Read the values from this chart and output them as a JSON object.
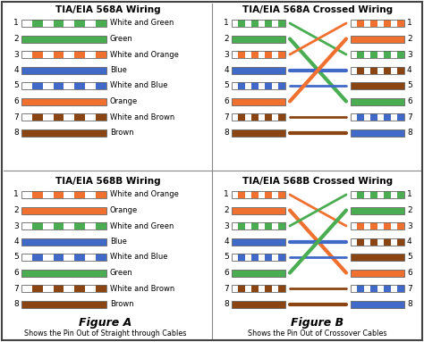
{
  "title_568A": "TIA/EIA 568A Wiring",
  "title_568B": "TIA/EIA 568B Wiring",
  "title_568A_cross": "TIA/EIA 568A Crossed Wiring",
  "title_568B_cross": "TIA/EIA 568B Crossed Wiring",
  "fig_A_label": "Figure A",
  "fig_B_label": "Figure B",
  "caption_A": "Shows the Pin Out of Straight through Cables",
  "caption_B": "Shows the Pin Out of Crossover Cables",
  "bg_color": "#ffffff",
  "wire_568A": [
    {
      "pin": 1,
      "label": "White and Green",
      "solid": false,
      "color": "#4aad52"
    },
    {
      "pin": 2,
      "label": "Green",
      "solid": true,
      "color": "#4aad52"
    },
    {
      "pin": 3,
      "label": "White and Orange",
      "solid": false,
      "color": "#f07030"
    },
    {
      "pin": 4,
      "label": "Blue",
      "solid": true,
      "color": "#4169c8"
    },
    {
      "pin": 5,
      "label": "White and Blue",
      "solid": false,
      "color": "#4169c8"
    },
    {
      "pin": 6,
      "label": "Orange",
      "solid": true,
      "color": "#f07030"
    },
    {
      "pin": 7,
      "label": "White and Brown",
      "solid": false,
      "color": "#8b4513"
    },
    {
      "pin": 8,
      "label": "Brown",
      "solid": true,
      "color": "#8b4513"
    }
  ],
  "wire_568B": [
    {
      "pin": 1,
      "label": "White and Orange",
      "solid": false,
      "color": "#f07030"
    },
    {
      "pin": 2,
      "label": "Orange",
      "solid": true,
      "color": "#f07030"
    },
    {
      "pin": 3,
      "label": "White and Green",
      "solid": false,
      "color": "#4aad52"
    },
    {
      "pin": 4,
      "label": "Blue",
      "solid": true,
      "color": "#4169c8"
    },
    {
      "pin": 5,
      "label": "White and Blue",
      "solid": false,
      "color": "#4169c8"
    },
    {
      "pin": 6,
      "label": "Green",
      "solid": true,
      "color": "#4aad52"
    },
    {
      "pin": 7,
      "label": "White and Brown",
      "solid": false,
      "color": "#8b4513"
    },
    {
      "pin": 8,
      "label": "Brown",
      "solid": true,
      "color": "#8b4513"
    }
  ],
  "cross_568A_left_colors": [
    "#4aad52",
    "#4aad52",
    "#f07030",
    "#4169c8",
    "#4169c8",
    "#f07030",
    "#8b4513",
    "#8b4513"
  ],
  "cross_568A_left_solid": [
    false,
    true,
    false,
    true,
    false,
    true,
    false,
    true
  ],
  "cross_568A_right_colors": [
    "#f07030",
    "#f07030",
    "#4aad52",
    "#8b4513",
    "#8b4513",
    "#4aad52",
    "#4169c8",
    "#4169c8"
  ],
  "cross_568A_right_solid": [
    false,
    true,
    false,
    false,
    true,
    true,
    false,
    true
  ],
  "cross_568A_connections": [
    3,
    6,
    1,
    4,
    5,
    2,
    7,
    8
  ],
  "cross_568B_left_colors": [
    "#f07030",
    "#f07030",
    "#4aad52",
    "#4169c8",
    "#4169c8",
    "#4aad52",
    "#8b4513",
    "#8b4513"
  ],
  "cross_568B_left_solid": [
    false,
    true,
    false,
    true,
    false,
    true,
    false,
    true
  ],
  "cross_568B_right_colors": [
    "#4aad52",
    "#4aad52",
    "#f07030",
    "#8b4513",
    "#8b4513",
    "#f07030",
    "#4169c8",
    "#4169c8"
  ],
  "cross_568B_right_solid": [
    false,
    true,
    false,
    false,
    true,
    true,
    false,
    true
  ],
  "cross_568B_connections": [
    3,
    6,
    1,
    4,
    5,
    2,
    7,
    8
  ],
  "green": "#4aad52",
  "orange": "#f07030",
  "blue": "#4169c8",
  "brown": "#8b4513",
  "dark_red": "#8b0000",
  "white": "#ffffff",
  "border_color": "#666666"
}
